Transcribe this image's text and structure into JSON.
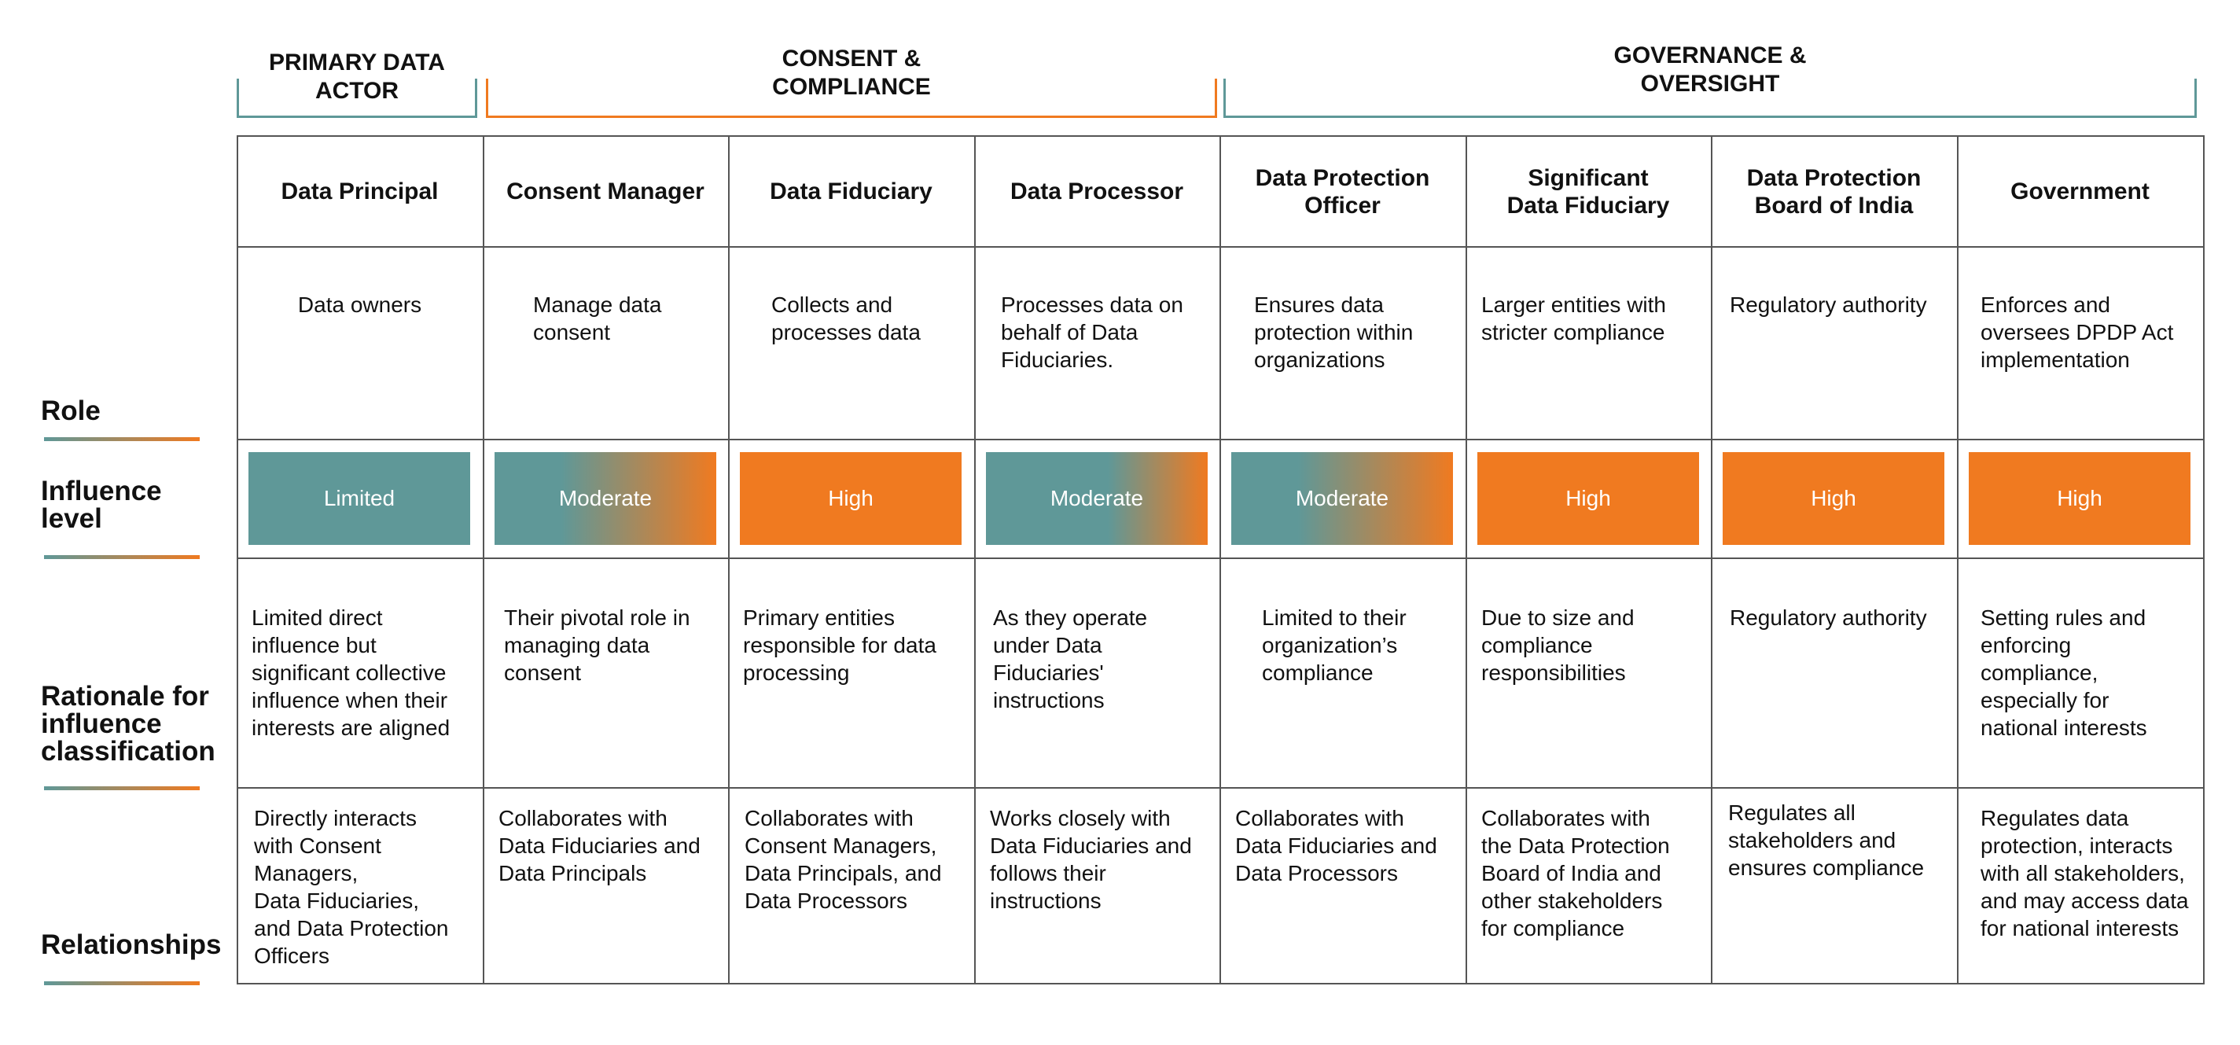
{
  "groups": [
    {
      "label": "PRIMARY DATA\nACTOR",
      "color": "#5f9898"
    },
    {
      "label": "CONSENT &\nCOMPLIANCE",
      "color": "#f07a20"
    },
    {
      "label": "GOVERNANCE &\nOVERSIGHT",
      "color": "#5f9898"
    }
  ],
  "row_labels": {
    "role": "Role",
    "influence": "Influence\nlevel",
    "rationale": "Rationale for\ninfluence\nclassification",
    "relationships": "Relationships"
  },
  "colors": {
    "teal": "#5f9898",
    "orange": "#f07a20"
  },
  "columns": [
    {
      "name": "Data Principal",
      "role": "Data owners",
      "influence": "Limited",
      "rationale": "Limited direct\ninfluence but\nsignificant collective\ninfluence when their\ninterests are aligned",
      "relationships": "Directly interacts\nwith Consent\nManagers,\nData Fiduciaries,\nand Data Protection\nOfficers"
    },
    {
      "name": "Consent Manager",
      "role": "Manage data\nconsent",
      "influence": "Moderate",
      "rationale": "Their pivotal role in\nmanaging data\nconsent",
      "relationships": "Collaborates with\nData Fiduciaries and\nData Principals"
    },
    {
      "name": "Data Fiduciary",
      "role": "Collects and\nprocesses data",
      "influence": "High",
      "rationale": "Primary entities\nresponsible for data\nprocessing",
      "relationships": "Collaborates with\nConsent Managers,\nData Principals, and\nData Processors"
    },
    {
      "name": "Data Processor",
      "role": "Processes data on\nbehalf of Data\nFiduciaries.",
      "influence": "Moderate",
      "rationale": "As they operate\nunder Data\nFiduciaries'\ninstructions",
      "relationships": "Works closely with\nData Fiduciaries and\nfollows their\ninstructions"
    },
    {
      "name": "Data Protection\nOfficer",
      "role": "Ensures data\nprotection within\norganizations",
      "influence": "Moderate",
      "rationale": "Limited to their\norganization’s\ncompliance",
      "relationships": "Collaborates with\nData Fiduciaries and\nData Processors"
    },
    {
      "name": "Significant\nData Fiduciary",
      "role": "Larger entities with\nstricter compliance",
      "influence": "High",
      "rationale": "Due to size and\ncompliance\nresponsibilities",
      "relationships": "Collaborates with\nthe Data Protection\nBoard of India and\nother stakeholders\nfor compliance"
    },
    {
      "name": "Data Protection\nBoard of India",
      "role": "Regulatory authority",
      "influence": "High",
      "rationale": "Regulatory authority",
      "relationships": "Regulates all\nstakeholders and\nensures compliance"
    },
    {
      "name": "Government",
      "role": "Enforces and\noversees DPDP Act\nimplementation",
      "influence": "High",
      "rationale": "Setting rules and\nenforcing\ncompliance,\nespecially for\nnational interests",
      "relationships": "Regulates data\nprotection, interacts\nwith all stakeholders,\nand may access data\nfor national interests"
    }
  ]
}
